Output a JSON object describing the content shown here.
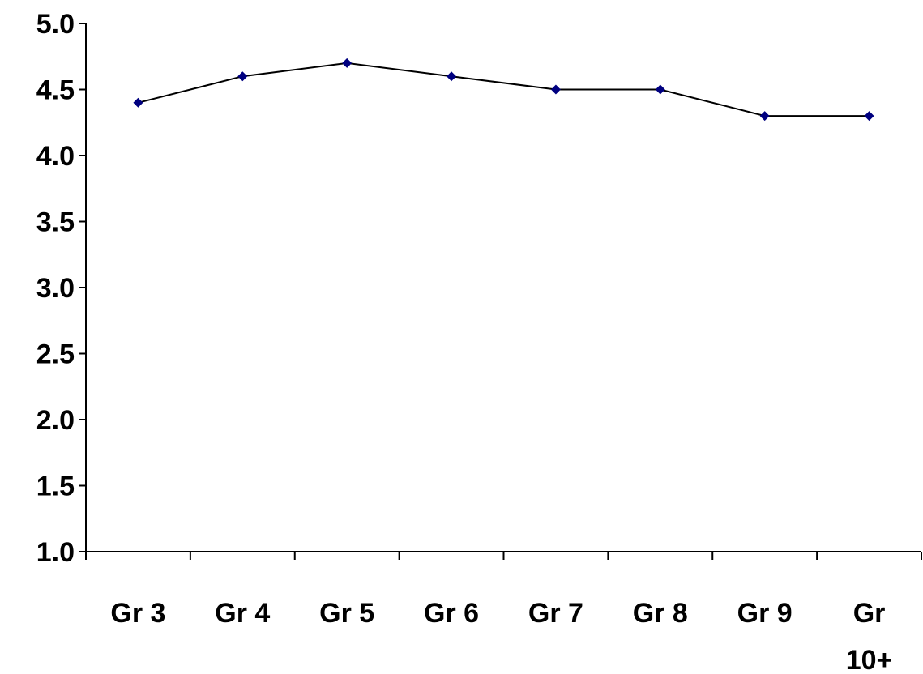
{
  "chart_data": {
    "type": "line",
    "categories": [
      "Gr 3",
      "Gr 4",
      "Gr 5",
      "Gr 6",
      "Gr 7",
      "Gr 8",
      "Gr 9",
      "Gr 10+"
    ],
    "series": [
      {
        "values": [
          4.4,
          4.6,
          4.7,
          4.6,
          4.5,
          4.5,
          4.3,
          4.3
        ],
        "marker_color": "#000080",
        "line_color": "#000000"
      }
    ],
    "yticks": [
      "1.0",
      "1.5",
      "2.0",
      "2.5",
      "3.0",
      "3.5",
      "4.0",
      "4.5",
      "5.0"
    ],
    "ylim": [
      1.0,
      5.0
    ],
    "title": "",
    "xlabel": "",
    "ylabel": "",
    "grid": false,
    "legend": false
  }
}
